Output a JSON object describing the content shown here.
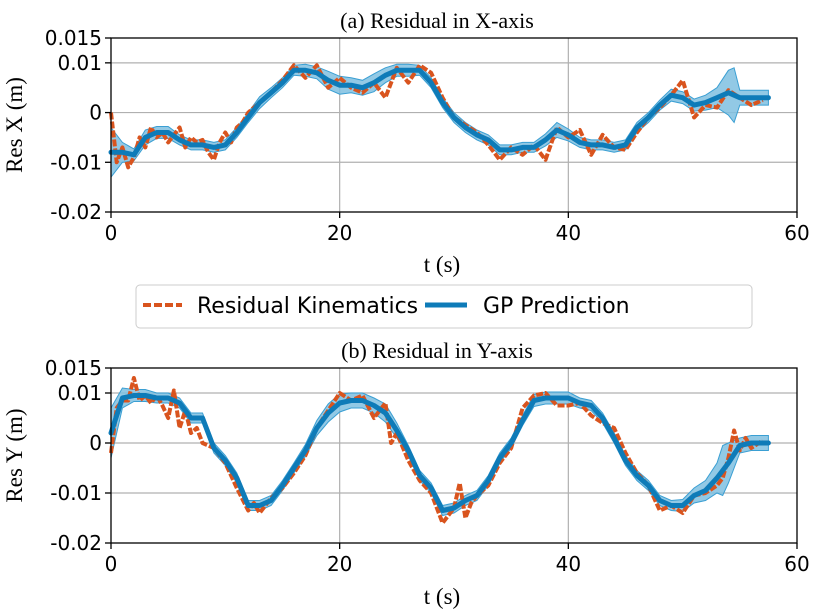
{
  "colors": {
    "residual": "#d9541e",
    "gp": "#0e7bb8",
    "band_fill": "#7fc0e0",
    "band_edge": "#3a9fd3",
    "grid": "#b0b0b0",
    "axis": "#000000"
  },
  "legend": {
    "items": [
      {
        "label": "Residual Kinematics",
        "style": "dashed",
        "color": "#d9541e"
      },
      {
        "label": "GP Prediction",
        "style": "solid",
        "color": "#0e7bb8"
      }
    ],
    "placement": "center, between subplots"
  },
  "chart_data": [
    {
      "type": "line",
      "title": "(a) Residual in X-axis",
      "xlabel": "t (s)",
      "ylabel": "Res X (m)",
      "xlim": [
        0,
        60
      ],
      "ylim": [
        -0.02,
        0.015
      ],
      "xticks": [
        0,
        20,
        40,
        60
      ],
      "xtick_labels": [
        "0",
        "20",
        "40",
        "60"
      ],
      "yticks": [
        0.015,
        0.01,
        0,
        -0.01,
        -0.02
      ],
      "ytick_labels": [
        "0.015",
        "0.01",
        "0",
        "-0.01",
        "-0.02"
      ],
      "grid": true,
      "series": [
        {
          "name": "GP Prediction",
          "x": [
            0,
            1,
            2,
            3,
            4,
            5,
            6,
            7,
            8,
            9,
            10,
            11,
            12,
            13,
            14,
            15,
            16,
            17,
            18,
            19,
            20,
            21,
            22,
            23,
            24,
            25,
            26,
            27,
            28,
            29,
            30,
            31,
            32,
            33,
            34,
            35,
            36,
            37,
            38,
            39,
            40,
            41,
            42,
            43,
            44,
            45,
            46,
            47,
            48,
            49,
            50,
            51,
            52,
            53,
            54,
            55,
            56,
            57.5
          ],
          "y": [
            -0.008,
            -0.008,
            -0.0085,
            -0.005,
            -0.004,
            -0.004,
            -0.0055,
            -0.0065,
            -0.0065,
            -0.007,
            -0.0065,
            -0.004,
            -0.001,
            0.002,
            0.004,
            0.006,
            0.0085,
            0.0085,
            0.008,
            0.0065,
            0.0055,
            0.0055,
            0.005,
            0.006,
            0.0075,
            0.0085,
            0.0085,
            0.0085,
            0.006,
            0.002,
            -0.001,
            -0.003,
            -0.0045,
            -0.0055,
            -0.0075,
            -0.0075,
            -0.007,
            -0.007,
            -0.0055,
            -0.0035,
            -0.0045,
            -0.006,
            -0.0065,
            -0.0065,
            -0.007,
            -0.0065,
            -0.003,
            -0.001,
            0.0015,
            0.0035,
            0.003,
            0.0015,
            0.002,
            0.003,
            0.004,
            0.003,
            0.003,
            0.003
          ]
        },
        {
          "name": "Residual Kinematics",
          "x": [
            0,
            0.5,
            1,
            1.5,
            2,
            2.5,
            3,
            3.5,
            4,
            4.5,
            5,
            5.5,
            6,
            6.5,
            7,
            7.5,
            8,
            8.5,
            9,
            9.5,
            10,
            10.5,
            11,
            11.5,
            12,
            13,
            14,
            15,
            16,
            17,
            18,
            19,
            20,
            21,
            22,
            23,
            24,
            25,
            26,
            27,
            28,
            29,
            30,
            31,
            32,
            33,
            34,
            35,
            36,
            37,
            38,
            39,
            40,
            41,
            42,
            43,
            44,
            45,
            46,
            47,
            48,
            49,
            50,
            51,
            52,
            53,
            54,
            55,
            56,
            57
          ],
          "y": [
            0,
            -0.01,
            -0.007,
            -0.011,
            -0.009,
            -0.005,
            -0.007,
            -0.003,
            -0.005,
            -0.004,
            -0.006,
            -0.0045,
            -0.003,
            -0.007,
            -0.005,
            -0.006,
            -0.0055,
            -0.008,
            -0.0095,
            -0.006,
            -0.004,
            -0.006,
            -0.003,
            -0.002,
            0,
            0.002,
            0.004,
            0.0065,
            0.0095,
            0.007,
            0.0095,
            0.005,
            0.007,
            0.005,
            0.004,
            0.006,
            0.003,
            0.009,
            0.006,
            0.0095,
            0.008,
            0.003,
            -0.001,
            -0.0025,
            -0.004,
            -0.0065,
            -0.0095,
            -0.007,
            -0.0085,
            -0.0065,
            -0.0095,
            -0.003,
            -0.005,
            -0.0035,
            -0.0085,
            -0.0045,
            -0.007,
            -0.0075,
            -0.004,
            -0.001,
            0.001,
            0.0035,
            0.0065,
            -0.001,
            0.0015,
            0.001,
            0.0045,
            0.003,
            0.0015,
            0.0025
          ]
        }
      ],
      "confidence_band": {
        "x": [
          0,
          1,
          2,
          3,
          4,
          5,
          6,
          7,
          8,
          9,
          10,
          11,
          12,
          13,
          14,
          15,
          16,
          17,
          18,
          19,
          20,
          21,
          22,
          23,
          24,
          25,
          26,
          27,
          28,
          29,
          30,
          31,
          32,
          33,
          34,
          35,
          36,
          37,
          38,
          39,
          40,
          41,
          42,
          43,
          44,
          45,
          46,
          47,
          48,
          49,
          50,
          51,
          52,
          53,
          54,
          54.5,
          55,
          56,
          57.5
        ],
        "half_width": [
          0.005,
          0.002,
          0.0012,
          0.0015,
          0.0012,
          0.0012,
          0.001,
          0.001,
          0.001,
          0.001,
          0.001,
          0.001,
          0.001,
          0.0012,
          0.001,
          0.001,
          0.001,
          0.0012,
          0.0012,
          0.0018,
          0.0018,
          0.0015,
          0.0015,
          0.0018,
          0.0015,
          0.0012,
          0.0012,
          0.001,
          0.001,
          0.001,
          0.001,
          0.001,
          0.001,
          0.001,
          0.001,
          0.001,
          0.001,
          0.001,
          0.0012,
          0.0015,
          0.0012,
          0.001,
          0.001,
          0.001,
          0.001,
          0.001,
          0.001,
          0.001,
          0.001,
          0.0012,
          0.0012,
          0.0012,
          0.0015,
          0.002,
          0.0045,
          0.0055,
          0.0015,
          0.0015,
          0.0015
        ]
      }
    },
    {
      "type": "line",
      "title": "(b) Residual in Y-axis",
      "xlabel": "t (s)",
      "ylabel": "Res Y (m)",
      "xlim": [
        0,
        60
      ],
      "ylim": [
        -0.02,
        0.015
      ],
      "xticks": [
        0,
        20,
        40,
        60
      ],
      "xtick_labels": [
        "0",
        "20",
        "40",
        "60"
      ],
      "yticks": [
        0.015,
        0.01,
        0,
        -0.01,
        -0.02
      ],
      "ytick_labels": [
        "0.015",
        "0.01",
        "0",
        "-0.01",
        "-0.02"
      ],
      "grid": true,
      "series": [
        {
          "name": "GP Prediction",
          "x": [
            0,
            1,
            2,
            3,
            4,
            5,
            6,
            7,
            8,
            9,
            10,
            11,
            12,
            13,
            14,
            15,
            16,
            17,
            18,
            19,
            20,
            21,
            22,
            23,
            24,
            25,
            26,
            27,
            28,
            29,
            30,
            31,
            32,
            33,
            34,
            35,
            36,
            37,
            38,
            39,
            40,
            41,
            42,
            43,
            44,
            45,
            46,
            47,
            48,
            49,
            50,
            51,
            52,
            53,
            54,
            55,
            56,
            57.5
          ],
          "y": [
            0.002,
            0.009,
            0.0095,
            0.0095,
            0.009,
            0.009,
            0.008,
            0.005,
            0.005,
            -0.001,
            -0.0035,
            -0.007,
            -0.0125,
            -0.0125,
            -0.0115,
            -0.0085,
            -0.005,
            -0.0015,
            0.003,
            0.006,
            0.008,
            0.0085,
            0.0085,
            0.0075,
            0.006,
            0.0025,
            -0.0015,
            -0.0065,
            -0.009,
            -0.0135,
            -0.013,
            -0.0115,
            -0.0105,
            -0.0075,
            -0.003,
            0,
            0.0045,
            0.0085,
            0.009,
            0.009,
            0.009,
            0.008,
            0.0075,
            0.005,
            0.001,
            -0.0035,
            -0.0065,
            -0.0085,
            -0.0115,
            -0.0125,
            -0.0125,
            -0.0105,
            -0.0095,
            -0.007,
            -0.004,
            -0.0005,
            0,
            0
          ]
        },
        {
          "name": "Residual Kinematics",
          "x": [
            0,
            0.5,
            1,
            1.5,
            2,
            2.5,
            3,
            3.5,
            4,
            4.5,
            5,
            5.5,
            6,
            6.5,
            7,
            7.5,
            8,
            9,
            10,
            11,
            12,
            12.5,
            13,
            13.5,
            14,
            15,
            16,
            17,
            18,
            19,
            20,
            21,
            22,
            23,
            24,
            24.5,
            25,
            26,
            27,
            28,
            29,
            30,
            30.5,
            31,
            31.5,
            32,
            33,
            34,
            35,
            36,
            37,
            38,
            39,
            40,
            41,
            42,
            43,
            44,
            45,
            46,
            47,
            48,
            49,
            50,
            51,
            52,
            53,
            53.5,
            54,
            54.5,
            55,
            55.5,
            56,
            57
          ],
          "y": [
            -0.002,
            0.007,
            0.0085,
            0.0085,
            0.013,
            0.0085,
            0.0095,
            0.008,
            0.0095,
            0.0075,
            0.005,
            0.0105,
            0.003,
            0.0065,
            0.002,
            0.003,
            0,
            -0.001,
            -0.004,
            -0.009,
            -0.0135,
            -0.012,
            -0.014,
            -0.0125,
            -0.011,
            -0.009,
            -0.006,
            -0.0025,
            0.003,
            0.0065,
            0.01,
            0.0085,
            0.0095,
            0.005,
            0.008,
            0,
            0.002,
            -0.0035,
            -0.0075,
            -0.01,
            -0.016,
            -0.013,
            -0.008,
            -0.015,
            -0.012,
            -0.0105,
            -0.0085,
            -0.004,
            -0.001,
            0.007,
            0.0095,
            0.01,
            0.0075,
            0.0075,
            0.008,
            0.0055,
            0.004,
            0.003,
            -0.002,
            -0.006,
            -0.0085,
            -0.0135,
            -0.0125,
            -0.014,
            -0.0105,
            -0.01,
            -0.0085,
            -0.007,
            -0.003,
            0.0025,
            -0.0015,
            0.001,
            -0.001,
            0.0005
          ]
        }
      ],
      "confidence_band": {
        "x": [
          0,
          1,
          2,
          3,
          4,
          5,
          6,
          7,
          8,
          9,
          10,
          11,
          12,
          13,
          14,
          15,
          16,
          17,
          18,
          19,
          20,
          21,
          22,
          23,
          24,
          25,
          26,
          27,
          28,
          29,
          30,
          31,
          32,
          33,
          34,
          35,
          36,
          37,
          38,
          39,
          40,
          41,
          42,
          43,
          44,
          45,
          46,
          47,
          48,
          49,
          50,
          51,
          52,
          53,
          53.5,
          54,
          55,
          56,
          57.5
        ],
        "half_width": [
          0.005,
          0.002,
          0.0012,
          0.0012,
          0.001,
          0.001,
          0.001,
          0.001,
          0.001,
          0.001,
          0.001,
          0.001,
          0.001,
          0.001,
          0.001,
          0.001,
          0.001,
          0.0012,
          0.0015,
          0.0018,
          0.0018,
          0.0015,
          0.0015,
          0.0015,
          0.0018,
          0.0015,
          0.001,
          0.001,
          0.001,
          0.001,
          0.001,
          0.001,
          0.001,
          0.001,
          0.001,
          0.001,
          0.001,
          0.0012,
          0.0012,
          0.0012,
          0.0012,
          0.001,
          0.001,
          0.001,
          0.001,
          0.001,
          0.001,
          0.001,
          0.001,
          0.001,
          0.0012,
          0.0015,
          0.002,
          0.003,
          0.005,
          0.004,
          0.0015,
          0.0015,
          0.0015
        ]
      }
    }
  ]
}
